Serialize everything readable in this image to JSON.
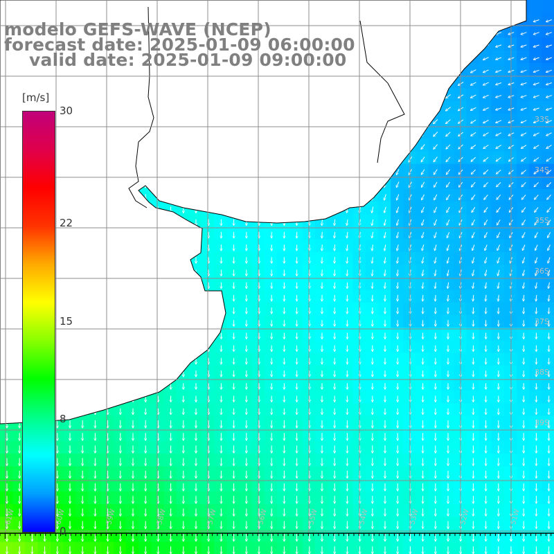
{
  "header": {
    "model": "modelo GEFS-WAVE (NCEP)",
    "forecast": "forecast date: 2025-01-09 06:00:00",
    "valid": "valid date: 2025-01-09 09:00:00"
  },
  "colorbar": {
    "unit": "[m/s]",
    "ticks": [
      {
        "label": "30",
        "value": 30
      },
      {
        "label": "22",
        "value": 22
      },
      {
        "label": "15",
        "value": 15
      },
      {
        "label": "8",
        "value": 8
      },
      {
        "label": "0",
        "value": 0
      }
    ],
    "color_stops": [
      "#0000ff",
      "#00a0ff",
      "#00ffff",
      "#00ff88",
      "#00ff00",
      "#88ff00",
      "#ffff00",
      "#ffaa00",
      "#ff3300",
      "#ff0000",
      "#e0004a",
      "#c0007a"
    ]
  },
  "map": {
    "lat_labels": [
      "33S",
      "34S",
      "35S",
      "36S",
      "37S",
      "38S",
      "39S"
    ],
    "lon_labels": [
      "61W",
      "60W",
      "59W",
      "58W",
      "57W",
      "56W",
      "55W",
      "54W",
      "53W",
      "52W",
      "51W"
    ]
  }
}
